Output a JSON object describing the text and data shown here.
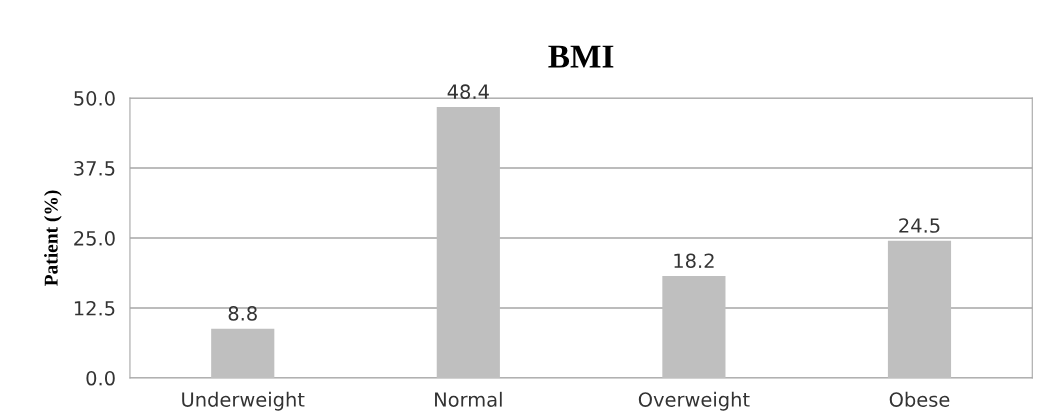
{
  "chart_data": {
    "type": "bar",
    "title": "BMI",
    "ylabel": "Patient (%)",
    "categories": [
      "Underweight",
      "Normal",
      "Overweight",
      "Obese"
    ],
    "values": [
      8.8,
      48.4,
      18.2,
      24.5
    ],
    "color": "#bfbfbf",
    "ylim": [
      0,
      50
    ],
    "yticks": [
      {
        "value": 0,
        "label": "0.0"
      },
      12.5,
      {
        "value": 25,
        "label": "25.0"
      },
      37.5,
      {
        "value": 50,
        "label": "50.0"
      }
    ],
    "grid": "y",
    "data_labels": true
  }
}
